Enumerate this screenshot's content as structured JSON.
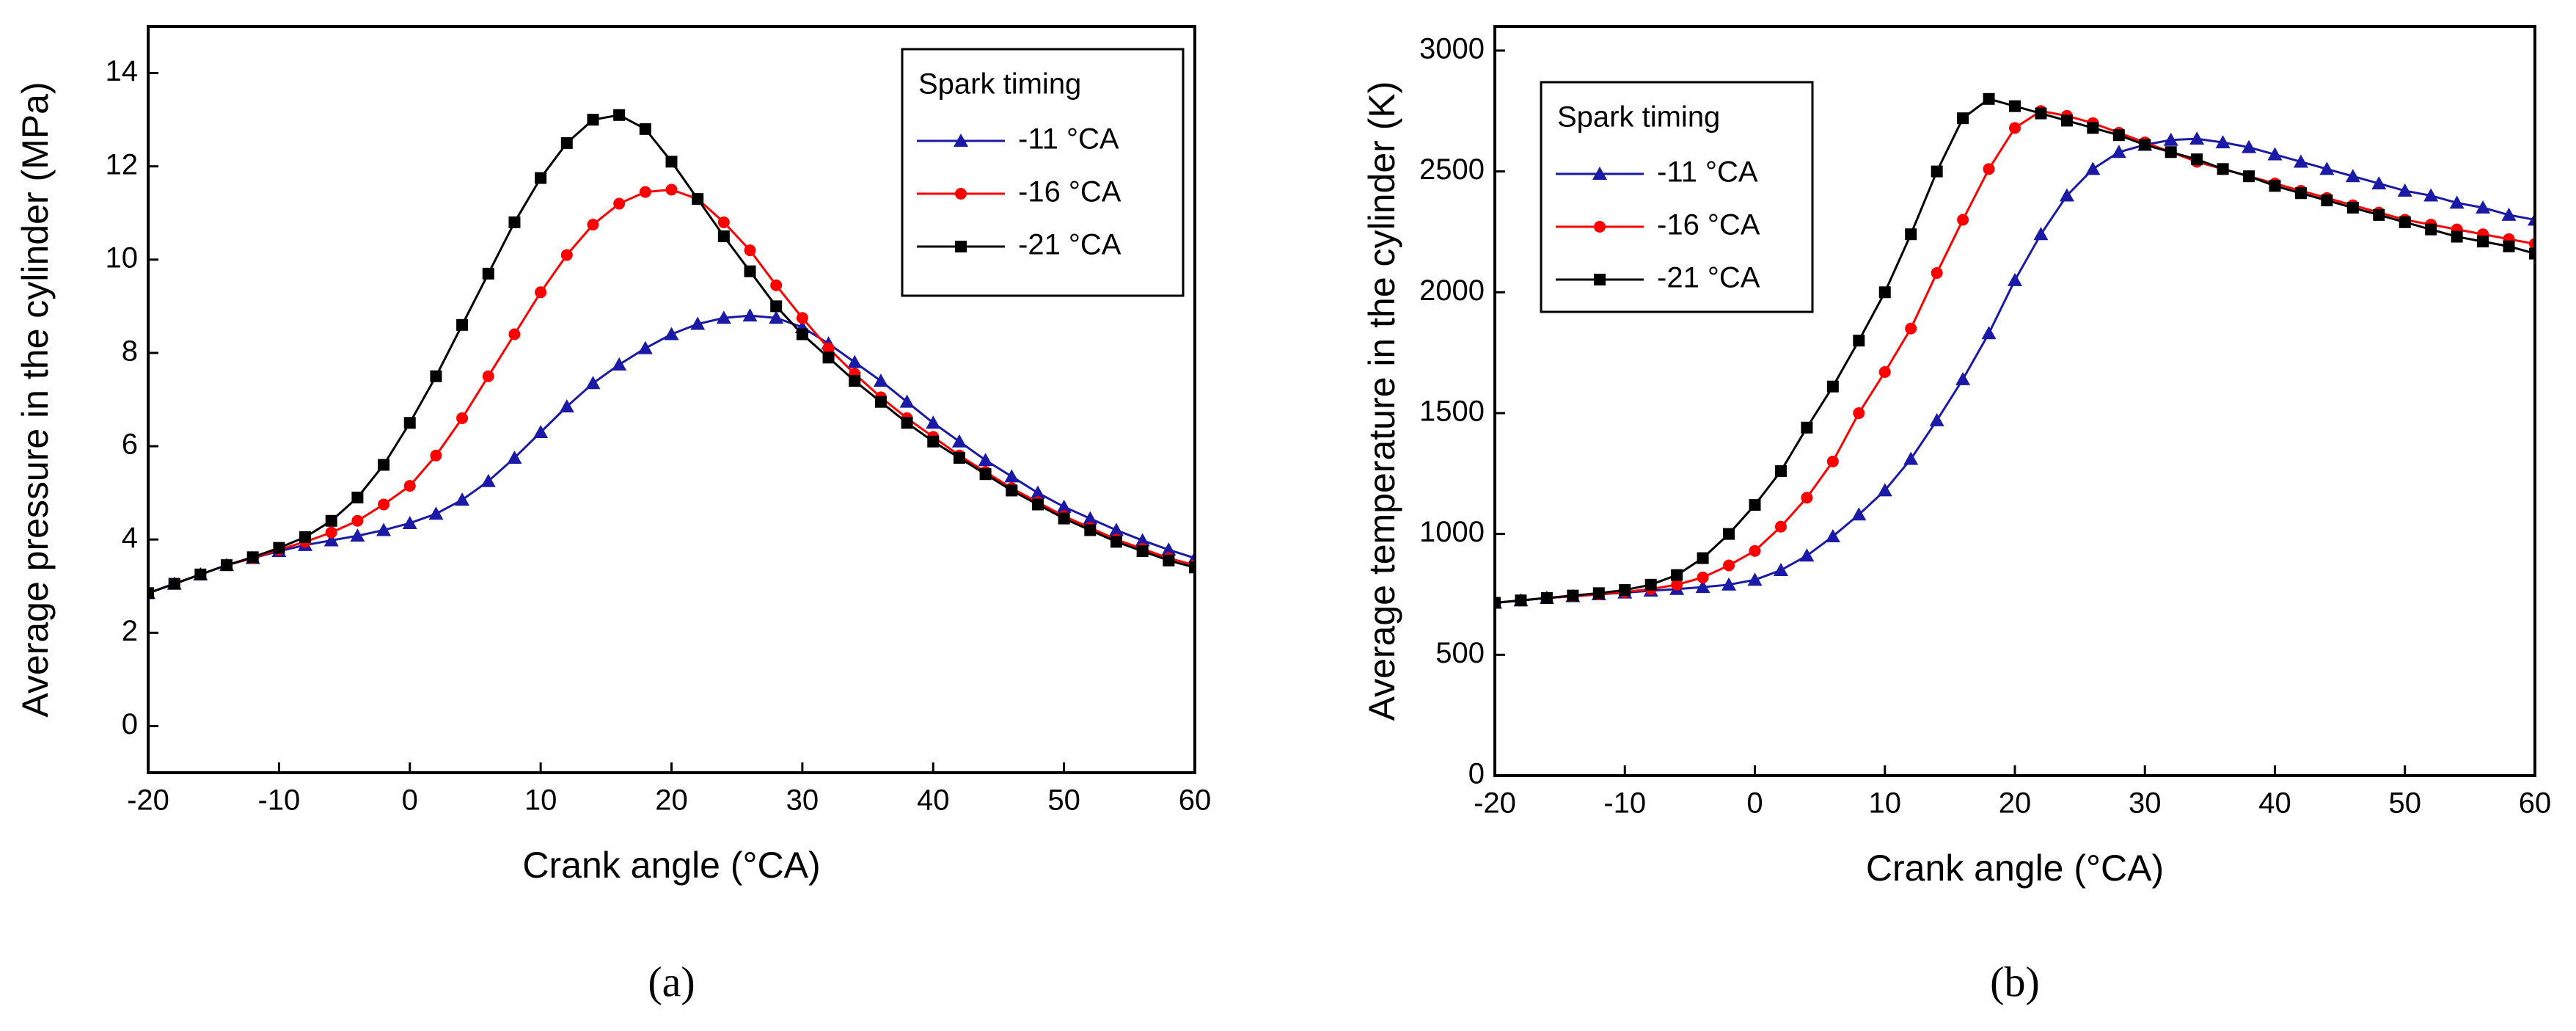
{
  "chart_data": [
    {
      "type": "line",
      "caption": "(a)",
      "x_label": "Crank angle (°CA)",
      "y_label": "Average pressure in the cylinder (MPa)",
      "legend_title": "Spark timing",
      "legend": "upper right",
      "xlim": [
        -20,
        60
      ],
      "xticks": [
        -20,
        -10,
        0,
        10,
        20,
        30,
        40,
        50,
        60
      ],
      "ylim": [
        -1,
        15
      ],
      "yticks": [
        0,
        2,
        4,
        6,
        8,
        10,
        12,
        14
      ],
      "x": [
        -20,
        -18,
        -16,
        -14,
        -12,
        -10,
        -8,
        -6,
        -4,
        -2,
        0,
        2,
        4,
        6,
        8,
        10,
        12,
        14,
        16,
        18,
        20,
        22,
        24,
        26,
        28,
        30,
        32,
        34,
        36,
        38,
        40,
        42,
        44,
        46,
        48,
        50,
        52,
        54,
        56,
        58,
        60
      ],
      "series": [
        {
          "name": "-11 °CA",
          "color": "#1a1aa6",
          "marker": "triangle",
          "values": [
            2.85,
            3.05,
            3.25,
            3.45,
            3.6,
            3.75,
            3.88,
            3.98,
            4.08,
            4.2,
            4.35,
            4.55,
            4.85,
            5.25,
            5.75,
            6.3,
            6.85,
            7.35,
            7.75,
            8.1,
            8.4,
            8.62,
            8.75,
            8.8,
            8.75,
            8.55,
            8.2,
            7.8,
            7.4,
            6.95,
            6.5,
            6.1,
            5.7,
            5.35,
            5.0,
            4.7,
            4.45,
            4.2,
            3.98,
            3.78,
            3.6
          ]
        },
        {
          "name": "-16 °CA",
          "color": "#ff0000",
          "marker": "circle",
          "values": [
            2.85,
            3.05,
            3.25,
            3.45,
            3.6,
            3.78,
            3.95,
            4.15,
            4.4,
            4.75,
            5.15,
            5.8,
            6.6,
            7.5,
            8.4,
            9.3,
            10.1,
            10.75,
            11.2,
            11.45,
            11.5,
            11.3,
            10.8,
            10.2,
            9.45,
            8.75,
            8.1,
            7.55,
            7.05,
            6.6,
            6.2,
            5.8,
            5.45,
            5.1,
            4.8,
            4.5,
            4.25,
            4.0,
            3.8,
            3.6,
            3.45
          ]
        },
        {
          "name": "-21 °CA",
          "color": "#000000",
          "marker": "square",
          "values": [
            2.85,
            3.05,
            3.25,
            3.45,
            3.62,
            3.82,
            4.05,
            4.4,
            4.9,
            5.6,
            6.5,
            7.5,
            8.6,
            9.7,
            10.8,
            11.75,
            12.5,
            13.0,
            13.1,
            12.8,
            12.1,
            11.3,
            10.5,
            9.75,
            9.0,
            8.4,
            7.9,
            7.4,
            6.95,
            6.5,
            6.1,
            5.75,
            5.4,
            5.05,
            4.75,
            4.45,
            4.2,
            3.95,
            3.75,
            3.55,
            3.4
          ]
        }
      ]
    },
    {
      "type": "line",
      "caption": "(b)",
      "x_label": "Crank angle (°CA)",
      "y_label": "Average temperature in the cylinder (K)",
      "legend_title": "Spark timing",
      "legend": "upper left",
      "xlim": [
        -20,
        60
      ],
      "xticks": [
        -20,
        -10,
        0,
        10,
        20,
        30,
        40,
        50,
        60
      ],
      "ylim": [
        0,
        3100
      ],
      "yticks": [
        0,
        500,
        1000,
        1500,
        2000,
        2500,
        3000
      ],
      "x": [
        -20,
        -18,
        -16,
        -14,
        -12,
        -10,
        -8,
        -6,
        -4,
        -2,
        0,
        2,
        4,
        6,
        8,
        10,
        12,
        14,
        16,
        18,
        20,
        22,
        24,
        26,
        28,
        30,
        32,
        34,
        36,
        38,
        40,
        42,
        44,
        46,
        48,
        50,
        52,
        54,
        56,
        58,
        60
      ],
      "series": [
        {
          "name": "-11 °CA",
          "color": "#1a1aa6",
          "marker": "triangle",
          "values": [
            715,
            725,
            735,
            742,
            750,
            757,
            765,
            772,
            780,
            790,
            810,
            850,
            910,
            990,
            1080,
            1180,
            1310,
            1470,
            1640,
            1830,
            2050,
            2240,
            2400,
            2510,
            2580,
            2610,
            2630,
            2635,
            2620,
            2600,
            2570,
            2540,
            2510,
            2480,
            2450,
            2420,
            2400,
            2370,
            2350,
            2320,
            2300
          ]
        },
        {
          "name": "-16 °CA",
          "color": "#ff0000",
          "marker": "circle",
          "values": [
            715,
            725,
            735,
            742,
            750,
            760,
            772,
            790,
            820,
            870,
            930,
            1030,
            1150,
            1300,
            1500,
            1670,
            1850,
            2080,
            2300,
            2510,
            2680,
            2750,
            2730,
            2700,
            2660,
            2620,
            2580,
            2540,
            2510,
            2480,
            2450,
            2420,
            2390,
            2360,
            2330,
            2300,
            2280,
            2260,
            2240,
            2220,
            2200
          ]
        },
        {
          "name": "-21 °CA",
          "color": "#000000",
          "marker": "square",
          "values": [
            715,
            725,
            735,
            745,
            755,
            768,
            790,
            830,
            900,
            1000,
            1120,
            1260,
            1440,
            1610,
            1800,
            2000,
            2240,
            2500,
            2720,
            2800,
            2770,
            2740,
            2710,
            2680,
            2650,
            2610,
            2580,
            2550,
            2510,
            2480,
            2440,
            2410,
            2380,
            2350,
            2320,
            2290,
            2260,
            2230,
            2210,
            2190,
            2160
          ]
        }
      ]
    }
  ]
}
